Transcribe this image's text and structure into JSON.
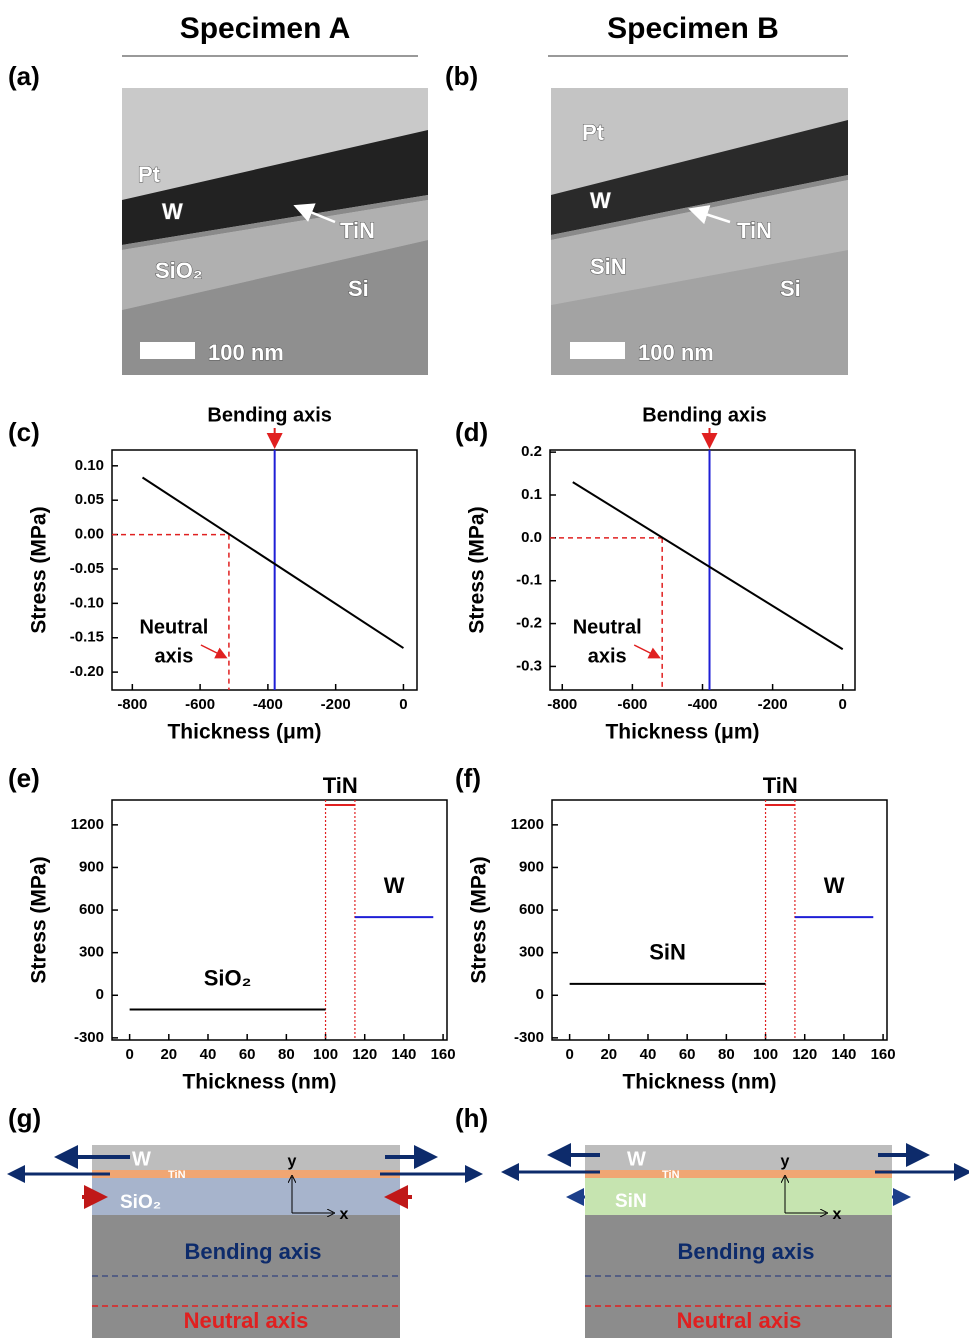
{
  "headers": [
    "Specimen A",
    "Specimen B"
  ],
  "panel_labels": [
    "(a)",
    "(b)",
    "(c)",
    "(d)",
    "(e)",
    "(f)",
    "(g)",
    "(h)"
  ],
  "images": [
    {
      "labels": [
        "Pt",
        "W",
        "TiN",
        "SiO₂",
        "Si"
      ],
      "scale_bar": "100 nm"
    },
    {
      "labels": [
        "Pt",
        "W",
        "TiN",
        "SiN",
        "Si"
      ],
      "scale_bar": "100 nm"
    }
  ],
  "schematics": [
    {
      "layers": [
        "W",
        "TiN",
        "SiO₂"
      ],
      "axes": [
        "y",
        "x"
      ],
      "bending_axis": "Bending axis",
      "neutral_axis": "Neutral axis"
    },
    {
      "layers": [
        "W",
        "TiN",
        "SiN"
      ],
      "axes": [
        "y",
        "x"
      ],
      "bending_axis": "Bending axis",
      "neutral_axis": "Neutral axis"
    }
  ],
  "chart_data": [
    {
      "type": "line",
      "x_label": "Thickness (μm)",
      "y_label": "Stress (MPa)",
      "xlim": [
        -860,
        40
      ],
      "ylim": [
        -0.226,
        0.123
      ],
      "xticks": [
        -800,
        -600,
        -400,
        -200,
        0
      ],
      "yticks": [
        {
          "value": 0.1,
          "label": "0.10"
        },
        0.05,
        {
          "value": 0,
          "label": "0.00"
        },
        -0.05,
        {
          "value": -0.1,
          "label": "-0.10"
        },
        -0.15,
        {
          "value": -0.2,
          "label": "-0.20"
        }
      ],
      "series": [
        {
          "color": "#000000",
          "x": [
            -770,
            0
          ],
          "values": [
            0.083,
            -0.165
          ]
        }
      ],
      "bending_axis": {
        "label": "Bending axis",
        "x": -380,
        "color": "#1f1fd6"
      },
      "neutral_axis": {
        "label": [
          "Neutral",
          "axis"
        ],
        "x": -515,
        "y": 0,
        "color": "#e02020"
      }
    },
    {
      "type": "line",
      "x_label": "Thickness (μm)",
      "y_label": "Stress (MPa)",
      "xlim": [
        -835,
        35
      ],
      "ylim": [
        -0.355,
        0.205
      ],
      "xticks": [
        -800,
        -600,
        -400,
        -200,
        0
      ],
      "yticks": [
        0.2,
        0.1,
        {
          "value": 0,
          "label": "0.0"
        },
        -0.1,
        -0.2,
        -0.3
      ],
      "series": [
        {
          "color": "#000000",
          "x": [
            -770,
            0
          ],
          "values": [
            0.13,
            -0.26
          ]
        }
      ],
      "bending_axis": {
        "label": "Bending axis",
        "x": -380,
        "color": "#1f1fd6"
      },
      "neutral_axis": {
        "label": [
          "Neutral",
          "axis"
        ],
        "x": -515,
        "y": 0,
        "color": "#e02020"
      }
    },
    {
      "type": "line",
      "x_label": "Thickness (nm)",
      "y_label": "Stress (MPa)",
      "xlim": [
        -9,
        162
      ],
      "ylim": [
        -315,
        1375
      ],
      "xticks": [
        0,
        20,
        40,
        60,
        80,
        100,
        120,
        140,
        160
      ],
      "yticks": [
        1200,
        900,
        600,
        300,
        0,
        -300
      ],
      "vlines": [
        100,
        115
      ],
      "vline_color": "#e02020",
      "series": [
        {
          "name": "SiO₂",
          "color": "#000000",
          "x": [
            0,
            100
          ],
          "values": [
            -100,
            -100
          ]
        },
        {
          "name": "TiN",
          "color": "#e02020",
          "x": [
            100,
            115
          ],
          "values": [
            1340,
            1340
          ]
        },
        {
          "name": "W",
          "color": "#1f1fd6",
          "x": [
            115,
            155
          ],
          "values": [
            550,
            550
          ]
        }
      ]
    },
    {
      "type": "line",
      "x_label": "Thickness (nm)",
      "y_label": "Stress (MPa)",
      "xlim": [
        -9,
        162
      ],
      "ylim": [
        -315,
        1375
      ],
      "xticks": [
        0,
        20,
        40,
        60,
        80,
        100,
        120,
        140,
        160
      ],
      "yticks": [
        1200,
        900,
        600,
        300,
        0,
        -300
      ],
      "vlines": [
        100,
        115
      ],
      "vline_color": "#e02020",
      "series": [
        {
          "name": "SiN",
          "color": "#000000",
          "x": [
            0,
            100
          ],
          "values": [
            80,
            80
          ]
        },
        {
          "name": "TiN",
          "color": "#e02020",
          "x": [
            100,
            115
          ],
          "values": [
            1340,
            1340
          ]
        },
        {
          "name": "W",
          "color": "#1f1fd6",
          "x": [
            115,
            155
          ],
          "values": [
            550,
            550
          ]
        }
      ]
    }
  ]
}
